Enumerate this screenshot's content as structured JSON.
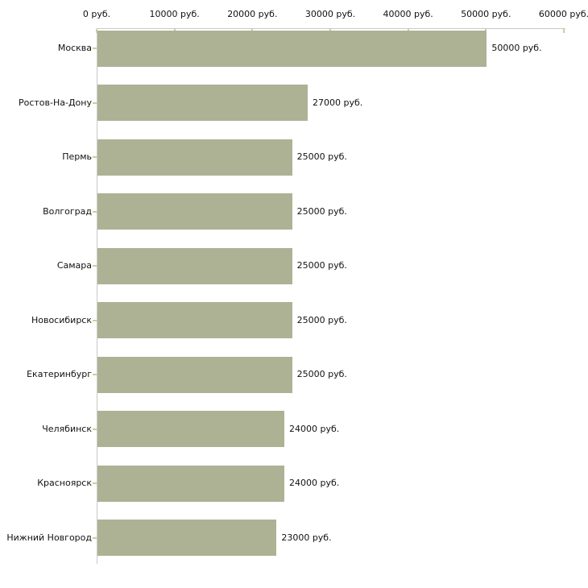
{
  "chart_data": {
    "type": "bar",
    "orientation": "horizontal",
    "title": "",
    "xlabel": "",
    "ylabel": "",
    "unit": "руб.",
    "grid": "off",
    "legend": "none",
    "xlim": [
      0,
      60000
    ],
    "x_ticks": [
      {
        "value": 0,
        "label": "0 руб."
      },
      {
        "value": 10000,
        "label": "10000 руб."
      },
      {
        "value": 20000,
        "label": "20000 руб."
      },
      {
        "value": 30000,
        "label": "30000 руб."
      },
      {
        "value": 40000,
        "label": "40000 руб."
      },
      {
        "value": 50000,
        "label": "50000 руб."
      },
      {
        "value": 60000,
        "label": "60000 руб."
      }
    ],
    "categories": [
      "Москва",
      "Ростов-На-Дону",
      "Пермь",
      "Волгоград",
      "Самара",
      "Новосибирск",
      "Екатеринбург",
      "Челябинск",
      "Красноярск",
      "Нижний Новгород"
    ],
    "values": [
      50000,
      27000,
      25000,
      25000,
      25000,
      25000,
      25000,
      24000,
      24000,
      23000
    ],
    "value_labels": [
      "50000 руб.",
      "27000 руб.",
      "25000 руб.",
      "25000 руб.",
      "25000 руб.",
      "25000 руб.",
      "25000 руб.",
      "24000 руб.",
      "24000 руб.",
      "23000 руб."
    ],
    "colors": {
      "bar": "#adb295",
      "axis_line": "#c9c9c9",
      "tick_mark": "#ccccA0",
      "text": "#111111",
      "background": "#ffffff"
    }
  }
}
